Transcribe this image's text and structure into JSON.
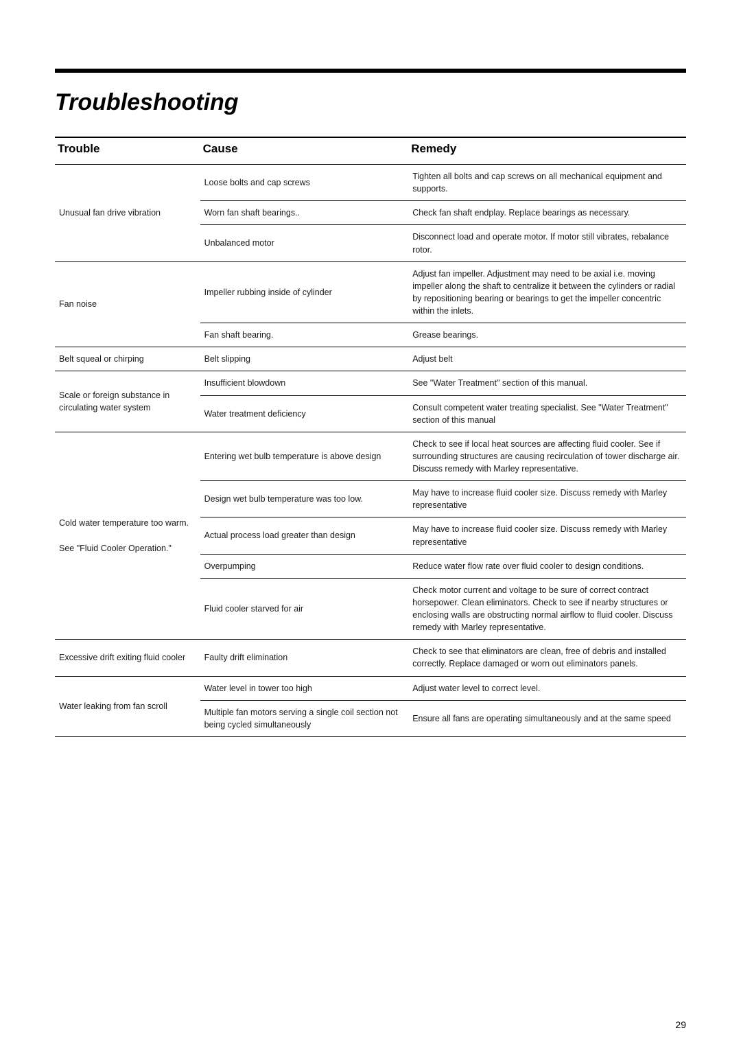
{
  "title": "Troubleshooting",
  "pageNumber": "29",
  "headers": {
    "trouble": "Trouble",
    "cause": "Cause",
    "remedy": "Remedy"
  },
  "rows": [
    {
      "trouble": "Unusual fan drive vibration",
      "troubleSpan": 3,
      "cause": "Loose bolts and cap screws",
      "remedy": "Tighten all bolts and cap screws on all mechanical equipment and supports."
    },
    {
      "cause": "Worn fan shaft bearings..",
      "remedy": "Check fan shaft endplay. Replace bearings as necessary."
    },
    {
      "cause": "Unbalanced motor",
      "remedy": "Disconnect load and operate motor. If motor still vibrates, rebalance rotor."
    },
    {
      "trouble": "Fan noise",
      "troubleSpan": 2,
      "cause": "Impeller rubbing inside of cylinder",
      "remedy": "Adjust fan impeller. Adjustment may need to be axial i.e. moving impeller along the shaft to centralize it between the  cylinders or radial by repositioning bearing or bearings to get the impeller concentric within the inlets."
    },
    {
      "cause": "Fan shaft bearing.",
      "remedy": "Grease bearings."
    },
    {
      "trouble": "Belt squeal or chirping",
      "troubleSpan": 1,
      "cause": "Belt slipping",
      "remedy": "Adjust belt"
    },
    {
      "trouble": "Scale or foreign substance in circulating water system",
      "troubleSpan": 2,
      "cause": "Insufficient blowdown",
      "remedy": "See \"Water Treatment\" section of this manual."
    },
    {
      "cause": "Water treatment deficiency",
      "remedy": "Consult competent water treating specialist. See \"Water Treatment\" section of this manual"
    },
    {
      "trouble": "Cold water temperature too warm.\n\nSee \"Fluid Cooler Operation.\"",
      "troubleSpan": 5,
      "cause": "Entering wet bulb temperature is above design",
      "remedy": "Check to see if local heat sources are affecting fluid cooler. See if surrounding structures are causing recirculation of tower discharge air. Discuss remedy with Marley representative."
    },
    {
      "cause": "Design wet bulb temperature was too low.",
      "remedy": "May have to increase fluid cooler size. Discuss remedy with Marley representative"
    },
    {
      "cause": "Actual process load greater than design",
      "remedy": "May have to increase fluid cooler size. Discuss remedy with Marley representative"
    },
    {
      "cause": "Overpumping",
      "remedy": "Reduce water flow rate over fluid cooler to design conditions."
    },
    {
      "cause": "Fluid cooler starved for air",
      "remedy": "Check motor current and voltage to be sure of correct contract horsepower. Clean eliminators. Check to see if nearby structures or enclosing walls are obstructing normal airflow to fluid cooler. Discuss remedy with Marley representative."
    },
    {
      "trouble": "Excessive drift exiting fluid cooler",
      "troubleSpan": 1,
      "cause": "Faulty drift elimination",
      "remedy": "Check to see that eliminators are clean, free of debris and installed correctly. Replace damaged or worn out eliminators panels."
    },
    {
      "trouble": "Water leaking from fan scroll",
      "troubleSpan": 2,
      "cause": "Water level in tower too high",
      "remedy": "Adjust water level to correct level."
    },
    {
      "cause": "Multiple fan motors serving a single coil section not being cycled simultaneously",
      "remedy": "Ensure all fans are operating simultaneously and at the same speed"
    }
  ]
}
